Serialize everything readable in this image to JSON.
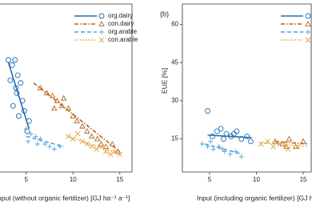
{
  "chart_data": [
    {
      "type": "scatter",
      "xlabel": "Input (without organic fertilizer) [GJ ha⁻¹ a⁻¹]",
      "xlim": [
        2.2,
        16.3
      ],
      "ylim": [
        2,
        68
      ],
      "xticks": [
        5,
        10,
        15
      ],
      "legend": "upper right",
      "series": [
        {
          "name": "org.dairy",
          "color": "#1f6fb4",
          "marker": "circle",
          "dash": "solid",
          "x": [
            3.1,
            3.5,
            3.8,
            4.1,
            4.4,
            3.3,
            4.0,
            4.6,
            3.6,
            4.2,
            4.8,
            5.3,
            5.1,
            3.9
          ],
          "values": [
            46,
            44,
            46,
            40,
            37,
            38,
            33,
            30,
            28,
            24,
            26,
            22,
            18,
            35
          ],
          "fit": {
            "x": [
              3.1,
              5.3
            ],
            "values": [
              45,
              19
            ]
          }
        },
        {
          "name": "con.dairy",
          "color": "#b5651d",
          "marker": "triangle",
          "dash": "dashdot",
          "x": [
            6.5,
            7.2,
            7.8,
            8.3,
            8.8,
            9.5,
            10,
            10.4,
            11,
            11.5,
            12,
            12.6,
            13,
            13.5,
            14.2,
            14.8,
            8,
            9
          ],
          "values": [
            35,
            33,
            32,
            30,
            28,
            27,
            24,
            22,
            20,
            18,
            16,
            15,
            13,
            12,
            13,
            10,
            27,
            31
          ],
          "fit": {
            "x": [
              5.8,
              15
            ],
            "values": [
              37,
              10
            ]
          }
        },
        {
          "name": "org.arable",
          "color": "#4fa3d8",
          "marker": "plus",
          "dash": "dashed",
          "x": [
            5,
            5.5,
            6,
            6.5,
            7,
            7.5,
            8,
            8.6,
            5.2,
            6.2
          ],
          "values": [
            19,
            17,
            16,
            15,
            13,
            12,
            11,
            12,
            14,
            13
          ],
          "fit": {
            "x": [
              5,
              9
            ],
            "values": [
              16,
              12
            ]
          }
        },
        {
          "name": "con.arable",
          "color": "#e0a030",
          "marker": "x",
          "dash": "dotted",
          "x": [
            9.5,
            10,
            10.5,
            11,
            11.5,
            12,
            12.5,
            13,
            13.5,
            14,
            14.5,
            15
          ],
          "values": [
            16,
            15,
            17,
            14,
            13,
            12,
            11,
            12,
            10,
            9,
            10,
            9
          ],
          "fit": {
            "x": [
              9.5,
              15
            ],
            "values": [
              16,
              9
            ]
          }
        }
      ]
    },
    {
      "type": "scatter",
      "panel": "(b)",
      "xlabel": "Input (including organic fertilizer) [GJ h",
      "ylabel": "EUE [%]",
      "xlim": [
        2.1,
        15.85
      ],
      "ylim": [
        2,
        68
      ],
      "xticks": [
        5,
        10,
        15
      ],
      "yticks": [
        15,
        30,
        45,
        60
      ],
      "legend": "upper right",
      "series": [
        {
          "color": "#1f6fb4",
          "marker": "circle",
          "dash": "solid",
          "x": [
            4.8,
            5.3,
            5.8,
            6.2,
            6.8,
            7.3,
            7.9,
            8.4,
            9,
            9.4,
            6.5,
            7.6
          ],
          "values": [
            26,
            16,
            18,
            19,
            17,
            16,
            18,
            15,
            16,
            14,
            15,
            17
          ],
          "fit": {
            "x": [
              4.8,
              9.5
            ],
            "values": [
              16.5,
              15.5
            ]
          }
        },
        {
          "color": "#b5651d",
          "marker": "triangle",
          "dash": "dashdot",
          "x": [
            12,
            12.8,
            13.5,
            14.2,
            15,
            13.2
          ],
          "values": [
            14,
            13,
            15,
            12,
            14,
            12
          ],
          "fit": {
            "x": [
              12,
              15.5
            ],
            "values": [
              14,
              13
            ]
          }
        },
        {
          "color": "#4fa3d8",
          "marker": "plus",
          "dash": "dashed",
          "x": [
            4.2,
            4.8,
            5.4,
            6,
            6.6,
            7.2,
            7.8,
            8.4,
            5.1,
            6.4
          ],
          "values": [
            13,
            12,
            11,
            12,
            10,
            9,
            10,
            8,
            14,
            11
          ],
          "fit": {
            "x": [
              4.5,
              8.5
            ],
            "values": [
              13,
              9
            ]
          }
        },
        {
          "color": "#e0a030",
          "marker": "x",
          "dash": "dotted",
          "x": [
            10.5,
            11.2,
            11.8,
            12.5,
            13.4,
            14.4
          ],
          "values": [
            13,
            14,
            12,
            13,
            11,
            12
          ],
          "fit": {
            "x": [
              10.5,
              15.5
            ],
            "values": [
              13.5,
              12
            ]
          }
        }
      ]
    }
  ]
}
